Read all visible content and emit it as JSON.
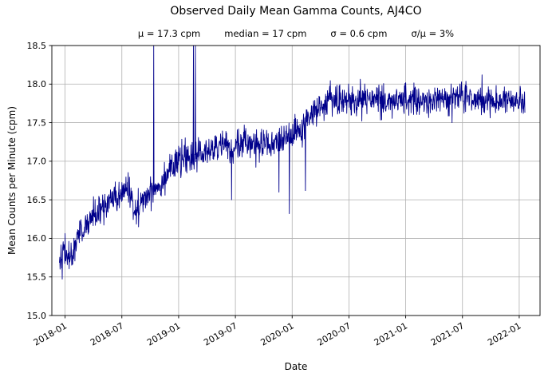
{
  "chart_data": {
    "type": "line",
    "title": "Observed Daily Mean Gamma Counts, AJ4CO",
    "subtitle_parts": [
      "μ = 17.3 cpm",
      "median = 17 cpm",
      "σ = 0.6 cpm",
      "σ/μ = 3%"
    ],
    "stats": {
      "mean_cpm": 17.3,
      "median_cpm": 17,
      "sigma_cpm": 0.6,
      "sigma_over_mu_pct": 3
    },
    "xlabel": "Date",
    "ylabel": "Mean Counts per Minute (cpm)",
    "line_color": "#00008b",
    "grid_color": "#b0b0b0",
    "axis_color": "#000000",
    "grid": true,
    "legend": "none",
    "ylim": [
      15.0,
      18.5
    ],
    "yticks": [
      15.0,
      15.5,
      16.0,
      16.5,
      17.0,
      17.5,
      18.0,
      18.5
    ],
    "ytick_labels": [
      "15.0",
      "15.5",
      "16.0",
      "16.5",
      "17.0",
      "17.5",
      "18.0",
      "18.5"
    ],
    "xtick_labels": [
      "2018-01",
      "2018-07",
      "2019-01",
      "2019-07",
      "2020-01",
      "2020-07",
      "2021-01",
      "2021-07",
      "2022-01"
    ],
    "xtick_months": [
      0,
      6,
      12,
      18,
      24,
      30,
      36,
      42,
      48
    ],
    "xlim_months": [
      -1.4,
      50.2
    ],
    "trend_anchors": [
      [
        -0.6,
        15.78
      ],
      [
        0.0,
        15.82
      ],
      [
        0.6,
        15.72
      ],
      [
        1.2,
        16.0
      ],
      [
        2.0,
        16.12
      ],
      [
        3.0,
        16.3
      ],
      [
        4.0,
        16.38
      ],
      [
        5.0,
        16.5
      ],
      [
        6.0,
        16.55
      ],
      [
        6.6,
        16.68
      ],
      [
        7.2,
        16.45
      ],
      [
        7.8,
        16.38
      ],
      [
        8.4,
        16.52
      ],
      [
        9.0,
        16.6
      ],
      [
        9.6,
        16.68
      ],
      [
        10.2,
        16.72
      ],
      [
        11.0,
        16.9
      ],
      [
        12.0,
        17.0
      ],
      [
        13.0,
        17.02
      ],
      [
        14.0,
        17.08
      ],
      [
        15.0,
        17.12
      ],
      [
        16.0,
        17.18
      ],
      [
        17.0,
        17.22
      ],
      [
        17.6,
        17.12
      ],
      [
        18.2,
        17.18
      ],
      [
        19.0,
        17.28
      ],
      [
        20.0,
        17.22
      ],
      [
        21.0,
        17.18
      ],
      [
        22.0,
        17.22
      ],
      [
        23.0,
        17.28
      ],
      [
        24.0,
        17.32
      ],
      [
        25.0,
        17.38
      ],
      [
        26.0,
        17.6
      ],
      [
        27.0,
        17.72
      ],
      [
        28.0,
        17.8
      ],
      [
        30.0,
        17.78
      ],
      [
        32.0,
        17.8
      ],
      [
        34.0,
        17.78
      ],
      [
        36.0,
        17.8
      ],
      [
        38.0,
        17.78
      ],
      [
        40.0,
        17.8
      ],
      [
        42.0,
        17.83
      ],
      [
        44.0,
        17.78
      ],
      [
        46.0,
        17.8
      ],
      [
        48.0,
        17.8
      ],
      [
        48.6,
        17.68
      ]
    ],
    "outlier_spikes": [
      [
        9.35,
        19.2
      ],
      [
        13.55,
        19.2
      ],
      [
        13.75,
        18.6
      ],
      [
        17.6,
        16.5
      ],
      [
        22.6,
        16.6
      ],
      [
        23.7,
        16.32
      ],
      [
        25.4,
        16.62
      ]
    ],
    "noise_std_cpm": 0.1,
    "points_per_month": 30
  }
}
